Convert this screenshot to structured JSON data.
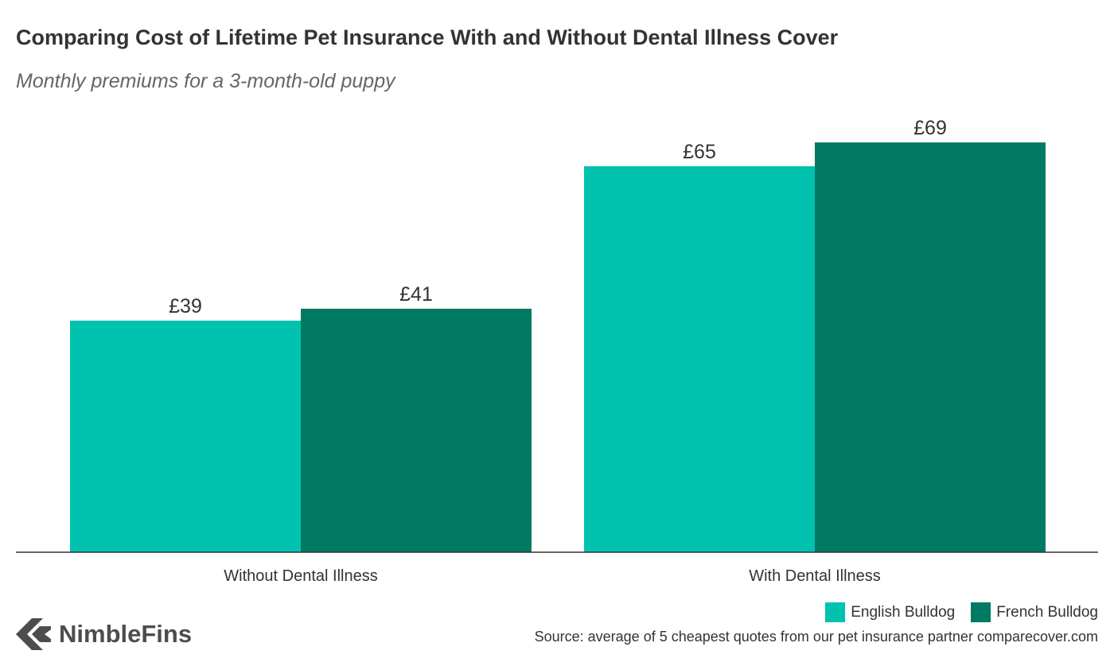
{
  "header": {
    "title": "Comparing Cost of Lifetime Pet Insurance With and Without Dental Illness Cover",
    "subtitle": "Monthly premiums for a 3-month-old puppy"
  },
  "chart_data": {
    "type": "bar",
    "title": "Comparing Cost of Lifetime Pet Insurance With and Without Dental Illness Cover",
    "subtitle": "Monthly premiums for a 3-month-old puppy",
    "categories": [
      "Without Dental Illness",
      "With Dental Illness"
    ],
    "series": [
      {
        "name": "English Bulldog",
        "values": [
          39,
          65
        ],
        "labels": [
          "£39",
          "£65"
        ],
        "color": "#00c2af"
      },
      {
        "name": "French Bulldog",
        "values": [
          41,
          69
        ],
        "labels": [
          "£41",
          "£69"
        ],
        "color": "#007a62"
      }
    ],
    "xlabel": "",
    "ylabel": "",
    "ylim": [
      0,
      80
    ],
    "grid": false,
    "legend_position": "bottom-right"
  },
  "legend": {
    "items": [
      {
        "label": "English Bulldog",
        "color": "#00c2af"
      },
      {
        "label": "French Bulldog",
        "color": "#007a62"
      }
    ]
  },
  "footer": {
    "brand": "NimbleFins",
    "source": "Source: average of 5 cheapest quotes from our pet insurance partner comparecover.com"
  },
  "colors": {
    "axis": "#333333",
    "logo": "#4d4d4d"
  }
}
